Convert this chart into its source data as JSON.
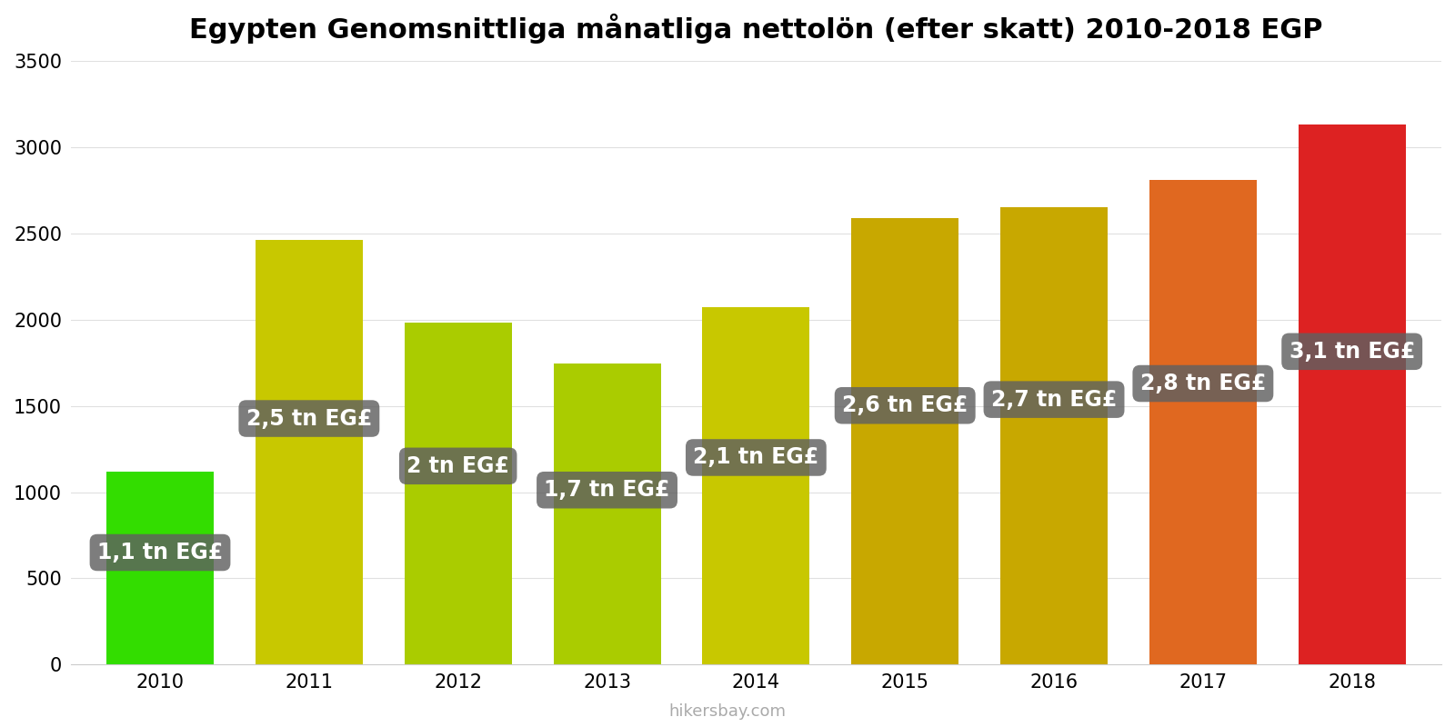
{
  "title": "Egypten Genomsnittliga månatliga nettolön (efter skatt) 2010-2018 EGP",
  "years": [
    2010,
    2011,
    2012,
    2013,
    2014,
    2015,
    2016,
    2017,
    2018
  ],
  "values": [
    1120,
    2460,
    1985,
    1745,
    2070,
    2590,
    2650,
    2810,
    3130
  ],
  "bar_colors": [
    "#33dd00",
    "#c8c800",
    "#aacc00",
    "#aacc00",
    "#c8c800",
    "#c8a800",
    "#c8a800",
    "#e06820",
    "#dd2222"
  ],
  "labels": [
    "1,1 tn EG£",
    "2,5 tn EG£",
    "2 tn EG£",
    "1,7 tn EG£",
    "2,1 tn EG£",
    "2,6 tn EG£",
    "2,7 tn EG£",
    "2,8 tn EG£",
    "3,1 tn EG£"
  ],
  "label_bg_color": "#606060",
  "label_text_color": "#ffffff",
  "ylim": [
    0,
    3500
  ],
  "yticks": [
    0,
    500,
    1000,
    1500,
    2000,
    2500,
    3000,
    3500
  ],
  "watermark": "hikersbay.com",
  "background_color": "#ffffff",
  "title_fontsize": 22,
  "tick_fontsize": 15,
  "label_fontsize": 17,
  "bar_width": 0.72
}
